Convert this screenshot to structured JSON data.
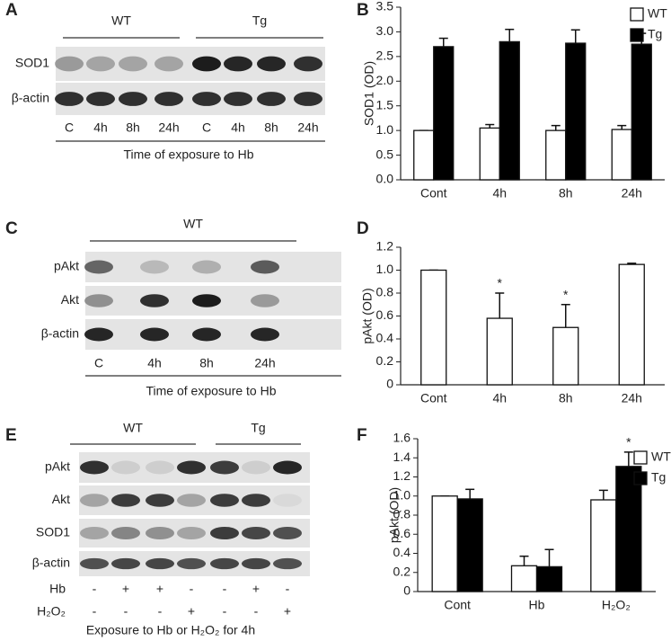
{
  "blots": [
    {
      "panel": "A",
      "groups": [
        "WT",
        "Tg"
      ],
      "rows": [
        "SOD1",
        "β-actin"
      ],
      "lanes": [
        "C",
        "4h",
        "8h",
        "24h",
        "C",
        "4h",
        "8h",
        "24h"
      ],
      "caption": "Time of exposure to Hb"
    },
    {
      "panel": "C",
      "groups": [
        "WT"
      ],
      "rows": [
        "pAkt",
        "Akt",
        "β-actin"
      ],
      "lanes": [
        "C",
        "4h",
        "8h",
        "24h"
      ],
      "caption": "Time of exposure to Hb"
    },
    {
      "panel": "E",
      "groups": [
        "WT",
        "Tg"
      ],
      "rows": [
        "pAkt",
        "Akt",
        "SOD1",
        "β-actin"
      ],
      "treatments": [
        {
          "name": "Hb",
          "signs": [
            "-",
            "+",
            "+",
            "-",
            "-",
            "+",
            "-"
          ]
        },
        {
          "name": "H₂O₂",
          "signs": [
            "-",
            "-",
            "-",
            "+",
            "-",
            "-",
            "+"
          ]
        }
      ],
      "caption": "Exposure to Hb or H₂O₂ for 4h"
    }
  ],
  "chart_data": [
    {
      "type": "bar",
      "panel": "B",
      "ylabel": "SOD1 (OD)",
      "categories": [
        "Cont",
        "4h",
        "8h",
        "24h"
      ],
      "series": [
        {
          "name": "WT",
          "color": "#ffffff",
          "values": [
            1.0,
            1.05,
            1.0,
            1.02
          ],
          "errors": [
            0,
            0.07,
            0.1,
            0.08
          ]
        },
        {
          "name": "Tg",
          "color": "#000000",
          "values": [
            2.7,
            2.8,
            2.77,
            2.75
          ],
          "errors": [
            0.17,
            0.25,
            0.27,
            0.22
          ]
        }
      ],
      "ylim": [
        0,
        3.5
      ],
      "yticks": [
        {
          "value": 0,
          "label": "0.0"
        },
        0.5,
        {
          "value": 1,
          "label": "1.0"
        },
        1.5,
        {
          "value": 2,
          "label": "2.0"
        },
        2.5,
        {
          "value": 3,
          "label": "3.0"
        },
        3.5
      ],
      "legend": "upper right"
    },
    {
      "type": "bar",
      "panel": "D",
      "ylabel": "pAkt (OD)",
      "categories": [
        "Cont",
        "4h",
        "8h",
        "24h"
      ],
      "values": [
        1.0,
        0.58,
        0.5,
        1.05
      ],
      "errors": [
        0,
        0.22,
        0.2,
        0.01
      ],
      "color": "#ffffff",
      "significance": [
        null,
        "*",
        "*",
        null
      ],
      "ylim": [
        0,
        1.2
      ],
      "yticks": [
        0,
        0.2,
        0.4,
        0.6,
        0.8,
        {
          "value": 1,
          "label": "1.0"
        },
        1.2
      ]
    },
    {
      "type": "bar",
      "panel": "F",
      "ylabel": "pAkt (OD)",
      "categories": [
        "Cont",
        "Hb",
        "H₂O₂"
      ],
      "series": [
        {
          "name": "WT",
          "color": "#ffffff",
          "values": [
            1.0,
            0.27,
            0.96
          ],
          "errors": [
            0,
            0.1,
            0.1
          ],
          "significance": [
            null,
            null,
            null
          ]
        },
        {
          "name": "Tg",
          "color": "#000000",
          "values": [
            0.97,
            0.26,
            1.31
          ],
          "errors": [
            0.1,
            0.18,
            0.15
          ],
          "significance": [
            null,
            null,
            "*"
          ]
        }
      ],
      "ylim": [
        0,
        1.6
      ],
      "yticks": [
        0,
        0.2,
        0.4,
        0.6,
        0.8,
        {
          "value": 1,
          "label": "1.0"
        },
        1.2,
        1.4,
        1.6
      ],
      "legend": "upper right"
    }
  ]
}
